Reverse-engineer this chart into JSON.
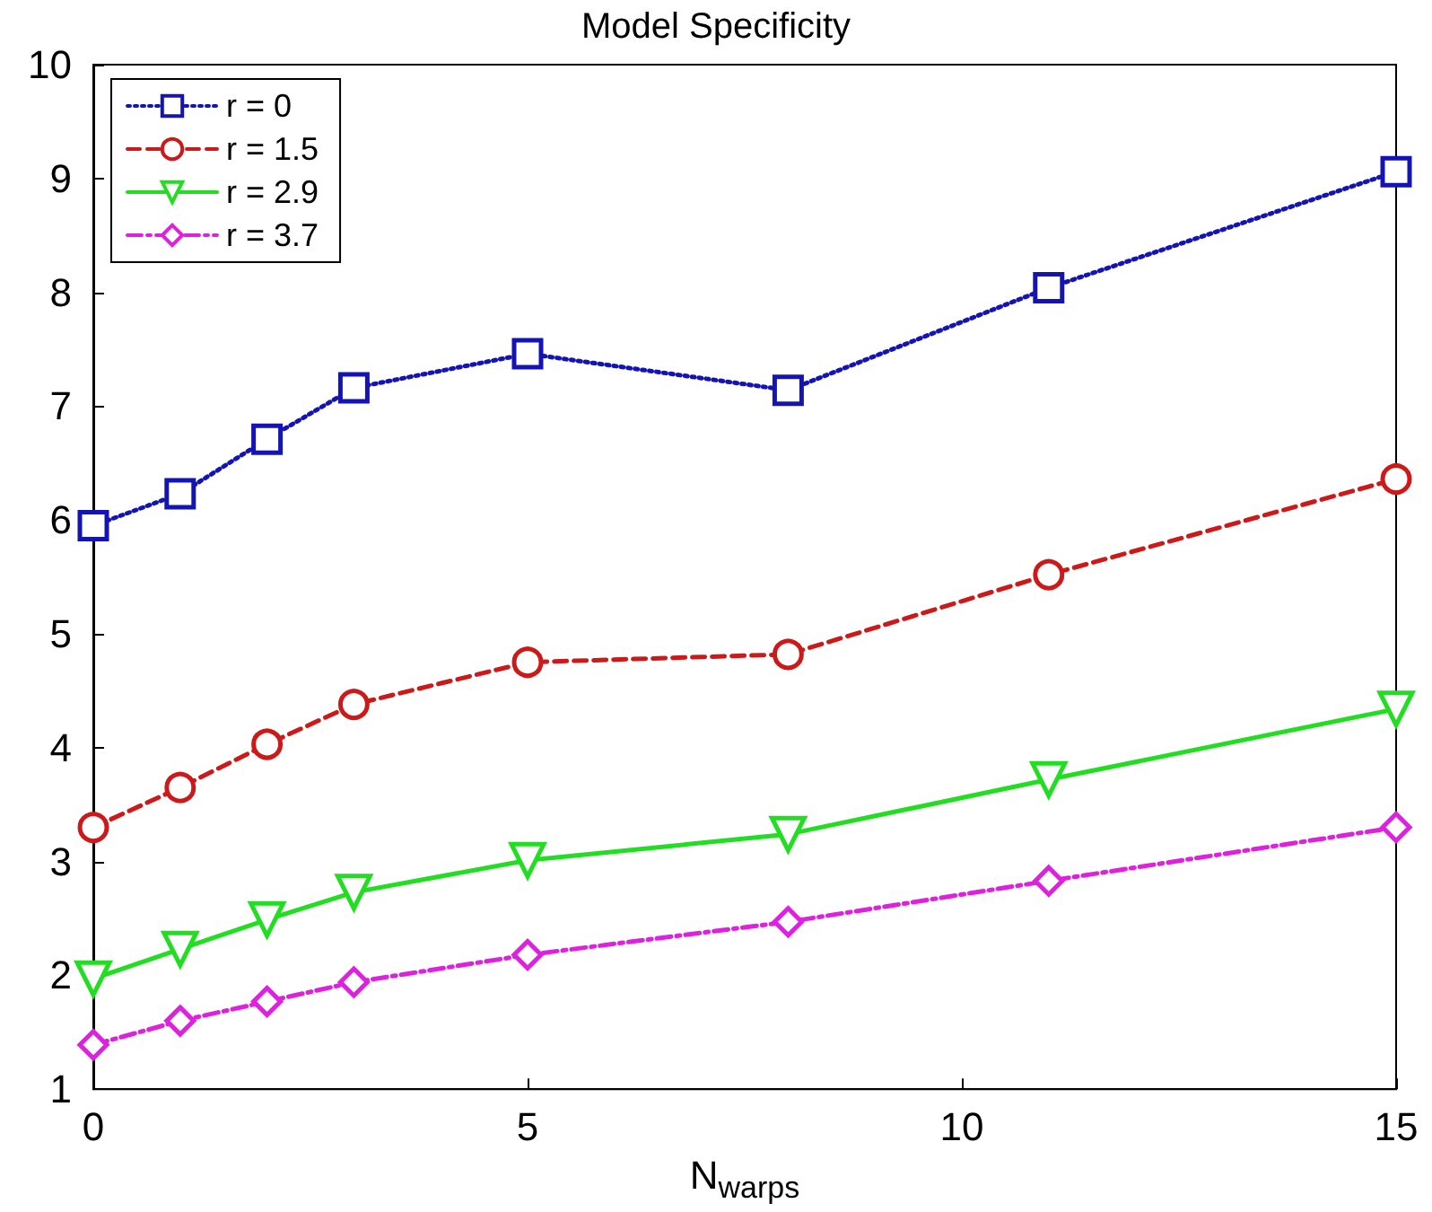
{
  "chart_data": {
    "type": "line",
    "title": "Model Specificity",
    "xlabel": "N$_{warps}$",
    "x": [
      0,
      1,
      2,
      3,
      5,
      8,
      11,
      15
    ],
    "series": [
      {
        "name": "r = 0",
        "color": "#1414b4",
        "marker": "square",
        "line_style": "dotted",
        "values": [
          5.95,
          6.23,
          6.71,
          7.16,
          7.46,
          7.14,
          8.04,
          9.06
        ]
      },
      {
        "name": "r = 1.5",
        "color": "#cc1a1a",
        "marker": "circle",
        "line_style": "dashed",
        "values": [
          3.3,
          3.65,
          4.03,
          4.38,
          4.75,
          4.82,
          5.52,
          6.36
        ]
      },
      {
        "name": "r = 2.9",
        "color": "#22dd22",
        "marker": "triangle",
        "line_style": "solid",
        "values": [
          1.97,
          2.23,
          2.49,
          2.73,
          3.01,
          3.24,
          3.72,
          4.34
        ]
      },
      {
        "name": "r = 3.7",
        "color": "#dd22dd",
        "marker": "diamond",
        "line_style": "dashdot",
        "values": [
          1.39,
          1.6,
          1.77,
          1.94,
          2.18,
          2.47,
          2.83,
          3.3
        ]
      }
    ],
    "xlim": [
      0,
      15
    ],
    "xticks": [
      0,
      5,
      10,
      15
    ],
    "ylim": [
      1,
      10
    ],
    "yticks": [
      1,
      2,
      3,
      4,
      5,
      6,
      7,
      8,
      9,
      10
    ],
    "grid": false,
    "legend": "top left"
  }
}
